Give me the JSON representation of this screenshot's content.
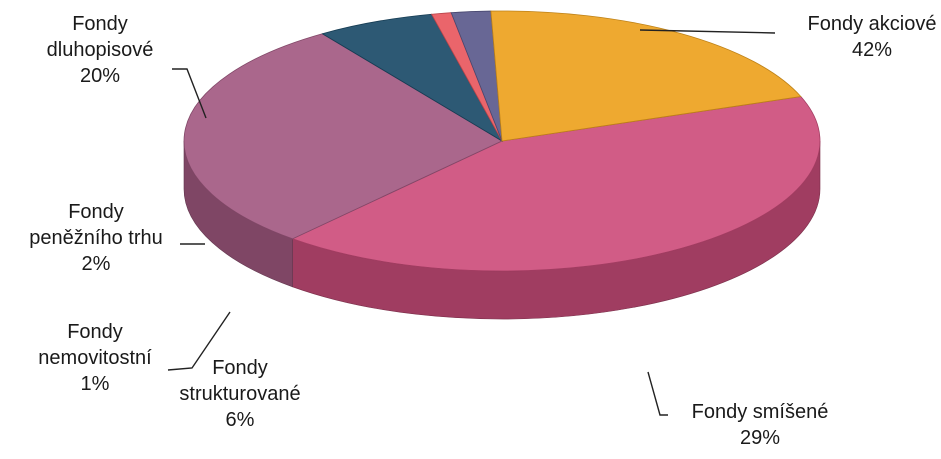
{
  "chart_data": {
    "type": "pie",
    "title": "",
    "three_d": true,
    "slices": [
      {
        "label_lines": [
          "Fondy akciové"
        ],
        "pct_label": "42%",
        "value": 42,
        "color": "#cd4e7c"
      },
      {
        "label_lines": [
          "Fondy smíšené"
        ],
        "pct_label": "29%",
        "value": 29,
        "color": "#a35a82"
      },
      {
        "label_lines": [
          "Fondy",
          "strukturované"
        ],
        "pct_label": "6%",
        "value": 6,
        "color": "#1b4b68"
      },
      {
        "label_lines": [
          "Fondy",
          "nemovitostní"
        ],
        "pct_label": "1%",
        "value": 1,
        "color": "#e8585e"
      },
      {
        "label_lines": [
          "Fondy",
          "peněžního trhu"
        ],
        "pct_label": "2%",
        "value": 2,
        "color": "#5b5a8c"
      },
      {
        "label_lines": [
          "Fondy",
          "dluhopisové"
        ],
        "pct_label": "20%",
        "value": 20,
        "color": "#eda21e"
      }
    ]
  }
}
